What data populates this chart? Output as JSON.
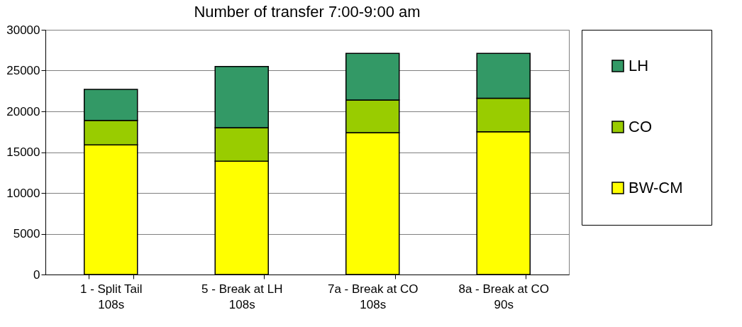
{
  "chart_data": {
    "type": "bar",
    "title": "Number of transfer 7:00-9:00 am",
    "stacked": true,
    "categories": [
      "1 - Split Tail\n108s",
      "5 - Break at LH\n108s",
      "7a - Break at CO\n108s",
      "8a - Break at CO\n90s"
    ],
    "series": [
      {
        "name": "BW-CM",
        "color": "#ffff00",
        "values": [
          15900,
          13900,
          17400,
          17500
        ]
      },
      {
        "name": "CO",
        "color": "#99cc00",
        "values": [
          3000,
          4100,
          4000,
          4100
        ]
      },
      {
        "name": "LH",
        "color": "#339966",
        "values": [
          3800,
          7500,
          5700,
          5500
        ]
      }
    ],
    "ylim": [
      0,
      30000
    ],
    "yticks": [
      0,
      5000,
      10000,
      15000,
      20000,
      25000,
      30000
    ],
    "grid": "y",
    "legend": "right"
  }
}
